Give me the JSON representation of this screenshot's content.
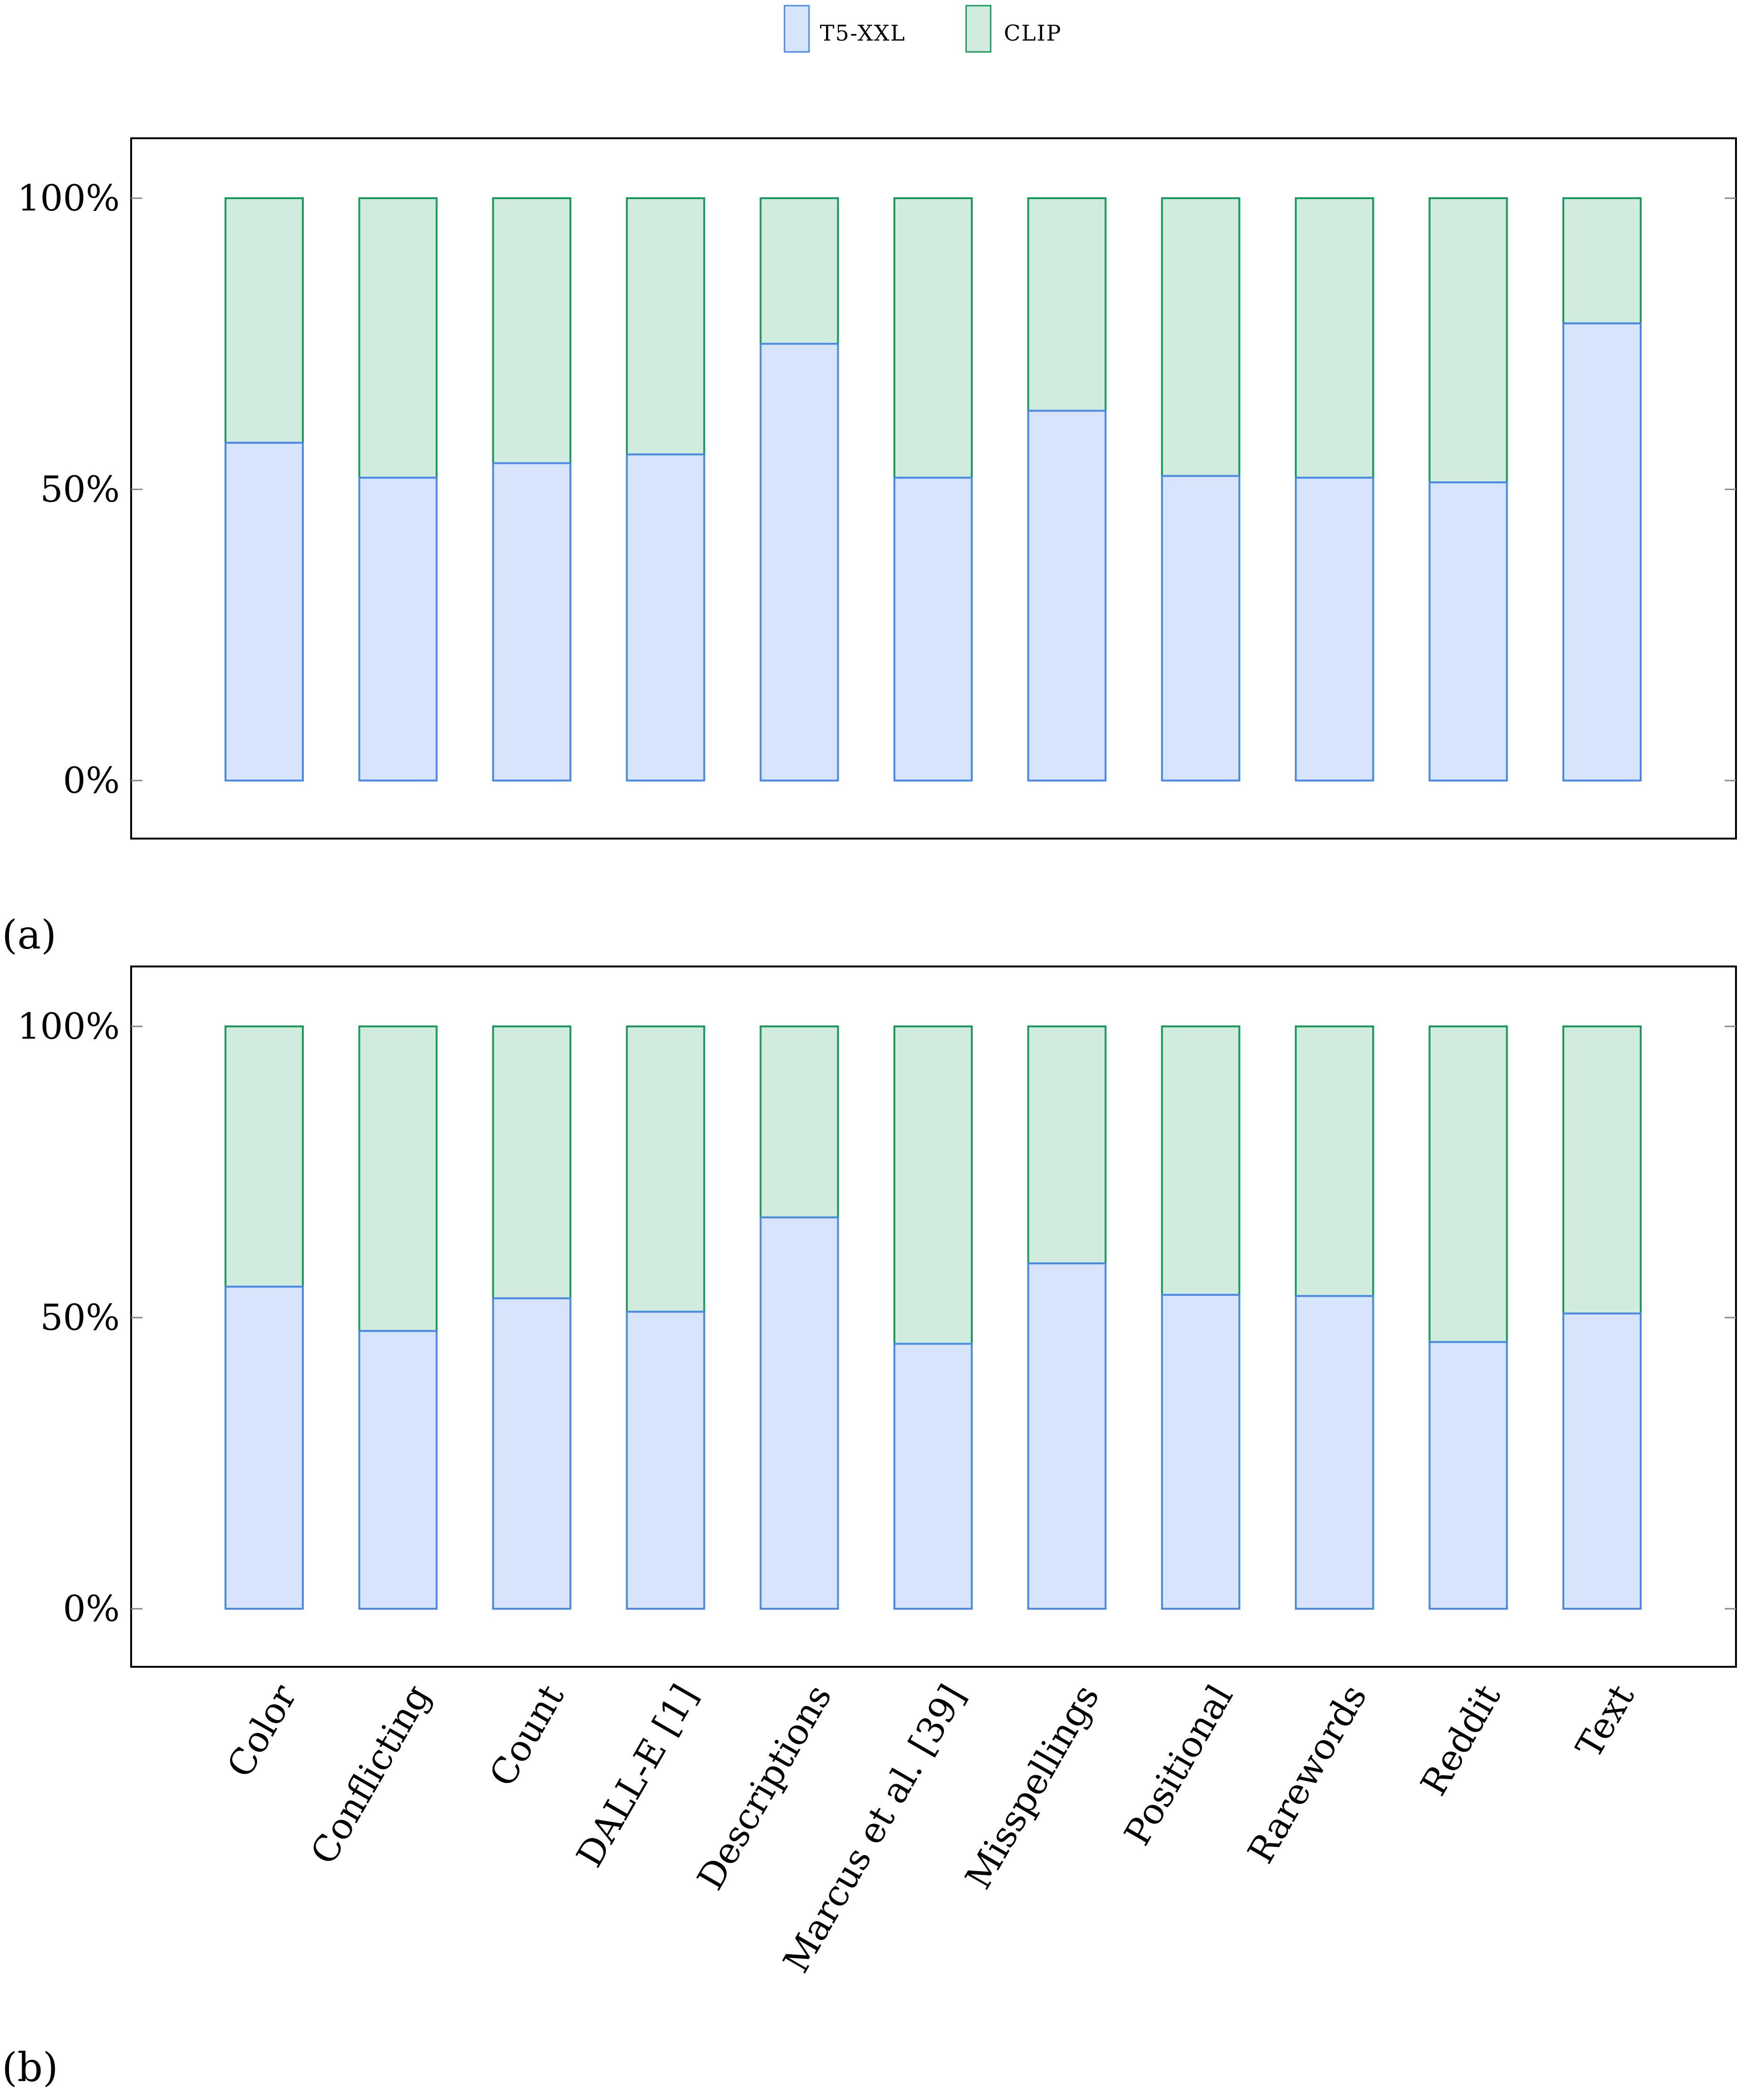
{
  "colors": {
    "t5_fill": "#d7e4fb",
    "t5_stroke": "#4a8ae6",
    "clip_fill": "#d1ebdf",
    "clip_stroke": "#1a9a5c"
  },
  "legend": {
    "t5_label": "T5-XXL",
    "clip_label": "CLIP"
  },
  "chart_data": [
    {
      "type": "bar",
      "stacked": true,
      "label": "(a)",
      "categories": [
        "Color",
        "Conflicting",
        "Count",
        "DALL-E [1]",
        "Descriptions",
        "Marcus et al. [39]",
        "Misspellings",
        "Positional",
        "Rarewords",
        "Reddit",
        "Text"
      ],
      "series": [
        {
          "name": "T5-XXL",
          "values": [
            58,
            52,
            54.5,
            56,
            75,
            52,
            63.5,
            52.3,
            52,
            51.2,
            78.5
          ]
        },
        {
          "name": "CLIP",
          "values": [
            42,
            48,
            45.5,
            44,
            25,
            48,
            36.5,
            47.7,
            48,
            48.8,
            21.5
          ]
        }
      ],
      "yticks": [
        "0%",
        "50%",
        "100%"
      ],
      "ylim": [
        -10,
        110
      ],
      "grid": false,
      "legend_position": "top-center"
    },
    {
      "type": "bar",
      "stacked": true,
      "label": "(b)",
      "categories": [
        "Color",
        "Conflicting",
        "Count",
        "DALL-E [1]",
        "Descriptions",
        "Marcus et al. [39]",
        "Misspellings",
        "Positional",
        "Rarewords",
        "Reddit",
        "Text"
      ],
      "series": [
        {
          "name": "T5-XXL",
          "values": [
            55.3,
            47.7,
            53.3,
            51,
            67.2,
            45.5,
            59.3,
            53.9,
            53.7,
            45.8,
            50.7
          ]
        },
        {
          "name": "CLIP",
          "values": [
            44.7,
            52.3,
            46.7,
            49,
            32.8,
            54.5,
            40.7,
            46.1,
            46.3,
            54.2,
            49.3
          ]
        }
      ],
      "yticks": [
        "0%",
        "50%",
        "100%"
      ],
      "ylim": [
        -10,
        110
      ],
      "grid": false,
      "legend_position": "top-center"
    }
  ]
}
